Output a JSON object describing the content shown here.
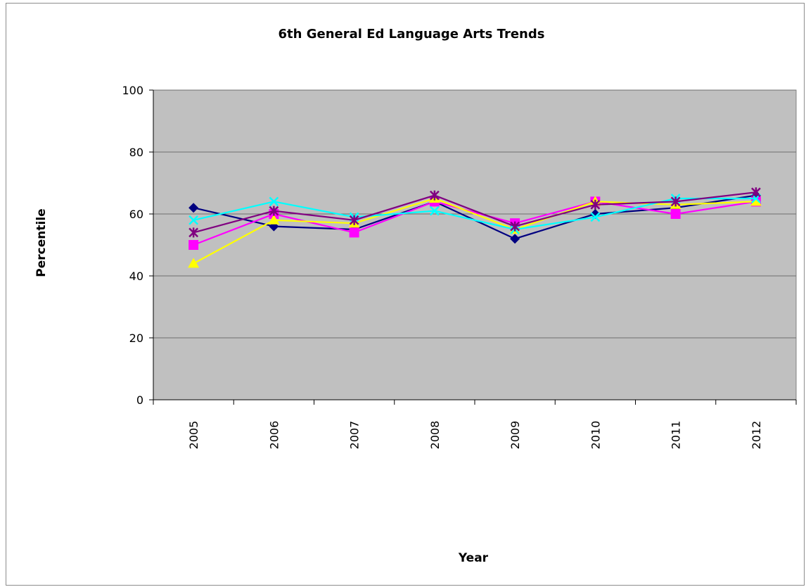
{
  "chart_data": {
    "type": "line",
    "title": "6th General Ed Language Arts Trends",
    "xlabel": "Year",
    "ylabel": "Percentile",
    "categories": [
      "2005",
      "2006",
      "2007",
      "2008",
      "2009",
      "2010",
      "2011",
      "2012"
    ],
    "ylim": [
      0,
      100
    ],
    "yticks": [
      0,
      20,
      40,
      60,
      80,
      100
    ],
    "grid": true,
    "legend": "none",
    "plot_background": "#c0c0c0",
    "series": [
      {
        "color": "#000080",
        "marker": "diamond",
        "values": [
          62,
          56,
          55,
          64,
          52,
          60,
          62,
          66
        ]
      },
      {
        "color": "#ff00ff",
        "marker": "square",
        "values": [
          50,
          60,
          54,
          64,
          57,
          64,
          60,
          64
        ]
      },
      {
        "color": "#ffff00",
        "marker": "triangle",
        "values": [
          44,
          58,
          57,
          65,
          55,
          64,
          63,
          64
        ]
      },
      {
        "color": "#00ffff",
        "marker": "x",
        "values": [
          58,
          64,
          59,
          61,
          55,
          59,
          65,
          65
        ]
      },
      {
        "color": "#800080",
        "marker": "star",
        "values": [
          54,
          61,
          58,
          66,
          56,
          63,
          64,
          67
        ]
      }
    ]
  }
}
